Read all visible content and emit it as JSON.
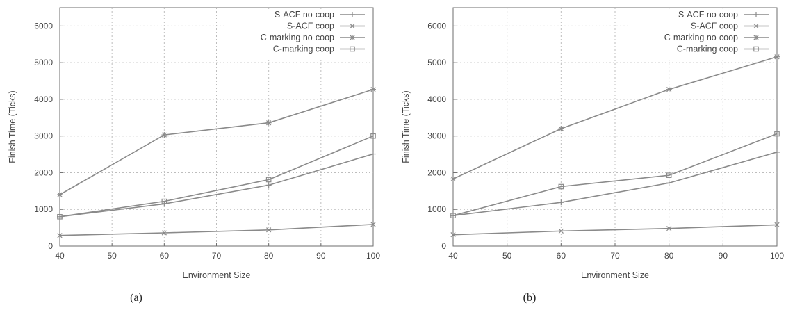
{
  "chart_data": [
    {
      "type": "line",
      "caption": "(a)",
      "xlabel": "Environment Size",
      "ylabel": "Finish Time (Ticks)",
      "xlim": [
        40,
        100
      ],
      "ylim": [
        0,
        6500
      ],
      "xticks": [
        40,
        50,
        60,
        70,
        80,
        90,
        100
      ],
      "yticks": [
        0,
        1000,
        2000,
        3000,
        4000,
        5000,
        6000
      ],
      "grid": true,
      "legend_position": "top-right",
      "x": [
        40,
        60,
        80,
        100
      ],
      "series": [
        {
          "name": "S-ACF no-coop",
          "marker": "plus",
          "values": [
            800,
            1150,
            1660,
            2510
          ]
        },
        {
          "name": "S-ACF coop",
          "marker": "x",
          "values": [
            290,
            360,
            440,
            590
          ]
        },
        {
          "name": "C-marking no-coop",
          "marker": "star",
          "values": [
            1400,
            3030,
            3360,
            4270
          ]
        },
        {
          "name": "C-marking coop",
          "marker": "square",
          "values": [
            800,
            1220,
            1810,
            3000
          ]
        }
      ]
    },
    {
      "type": "line",
      "caption": "(b)",
      "xlabel": "Environment Size",
      "ylabel": "Finish Time (Ticks)",
      "xlim": [
        40,
        100
      ],
      "ylim": [
        0,
        6500
      ],
      "xticks": [
        40,
        50,
        60,
        70,
        80,
        90,
        100
      ],
      "yticks": [
        0,
        1000,
        2000,
        3000,
        4000,
        5000,
        6000
      ],
      "grid": true,
      "legend_position": "top-right",
      "x": [
        40,
        60,
        80,
        100
      ],
      "series": [
        {
          "name": "S-ACF no-coop",
          "marker": "plus",
          "values": [
            830,
            1190,
            1720,
            2560
          ]
        },
        {
          "name": "S-ACF coop",
          "marker": "x",
          "values": [
            310,
            410,
            480,
            580
          ]
        },
        {
          "name": "C-marking no-coop",
          "marker": "star",
          "values": [
            1830,
            3200,
            4270,
            5160
          ]
        },
        {
          "name": "C-marking coop",
          "marker": "square",
          "values": [
            830,
            1620,
            1930,
            3060
          ]
        }
      ]
    }
  ],
  "style": {
    "line_color": "#8a8a8a",
    "grid_color": "#bdbdbd",
    "axis_color": "#6e6e6e"
  }
}
